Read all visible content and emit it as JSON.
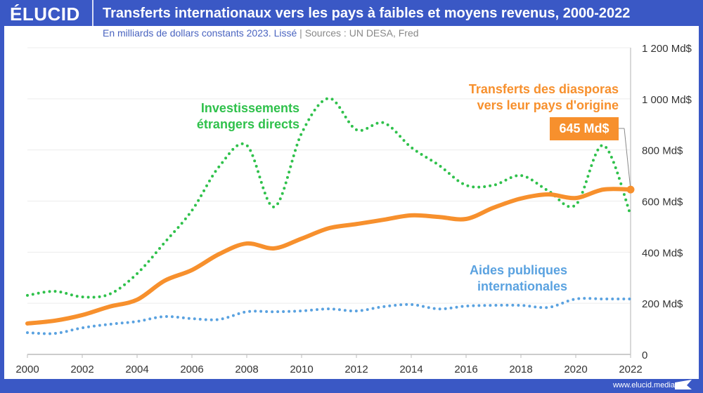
{
  "header": {
    "logo": "ÉLUCID",
    "title": "Transferts internationaux vers les pays à faibles et moyens revenus, 2000-2022"
  },
  "subtitle": {
    "text": "En milliards de dollars constants 2023. Lissé",
    "separator": "|",
    "sources": "Sources : UN DESA, Fred"
  },
  "footer": {
    "url": "www.elucid.media"
  },
  "colors": {
    "brand": "#3a58c5",
    "remittances": "#f7902d",
    "fdi": "#2fc14b",
    "aid": "#5aa2e0"
  },
  "chart_data": {
    "type": "line",
    "x": [
      2000,
      2001,
      2002,
      2003,
      2004,
      2005,
      2006,
      2007,
      2008,
      2009,
      2010,
      2011,
      2012,
      2013,
      2014,
      2015,
      2016,
      2017,
      2018,
      2019,
      2020,
      2021,
      2022
    ],
    "xticks": [
      "2000",
      "2002",
      "2004",
      "2006",
      "2008",
      "2010",
      "2012",
      "2014",
      "2016",
      "2018",
      "2020",
      "2022"
    ],
    "yticks": [
      "0",
      "200 Md$",
      "400 Md$",
      "600 Md$",
      "800 Md$",
      "1 000 Md$",
      "1 200 Md$"
    ],
    "ylim": [
      0,
      1200
    ],
    "xlim": [
      2000,
      2022
    ],
    "grid": true,
    "yaxis_side": "right",
    "series": [
      {
        "name": "Investissements étrangers directs",
        "style": "dotted",
        "color": "#2fc14b",
        "values": [
          231,
          247,
          225,
          236,
          316,
          437,
          563,
          736,
          818,
          577,
          865,
          1002,
          879,
          906,
          810,
          741,
          662,
          662,
          700,
          640,
          585,
          818,
          546
        ]
      },
      {
        "name": "Transferts des diasporas vers leur pays d'origine",
        "style": "solid",
        "color": "#f7902d",
        "values": [
          121,
          132,
          154,
          187,
          214,
          288,
          330,
          393,
          434,
          415,
          453,
          494,
          510,
          527,
          544,
          538,
          530,
          574,
          610,
          626,
          612,
          645,
          645
        ]
      },
      {
        "name": "Aides publiques internationales",
        "style": "dotted",
        "color": "#5aa2e0",
        "values": [
          85,
          82,
          104,
          118,
          129,
          148,
          140,
          137,
          167,
          167,
          170,
          178,
          170,
          187,
          195,
          178,
          189,
          192,
          192,
          184,
          217,
          217,
          217
        ]
      }
    ],
    "annotations": {
      "fdi_label": [
        "Investissements",
        "étrangers directs"
      ],
      "rem_label": [
        "Transferts des diasporas",
        "vers leur pays d'origine"
      ],
      "aid_label": [
        "Aides publiques",
        "internationales"
      ],
      "callout": "645 Md$"
    }
  }
}
